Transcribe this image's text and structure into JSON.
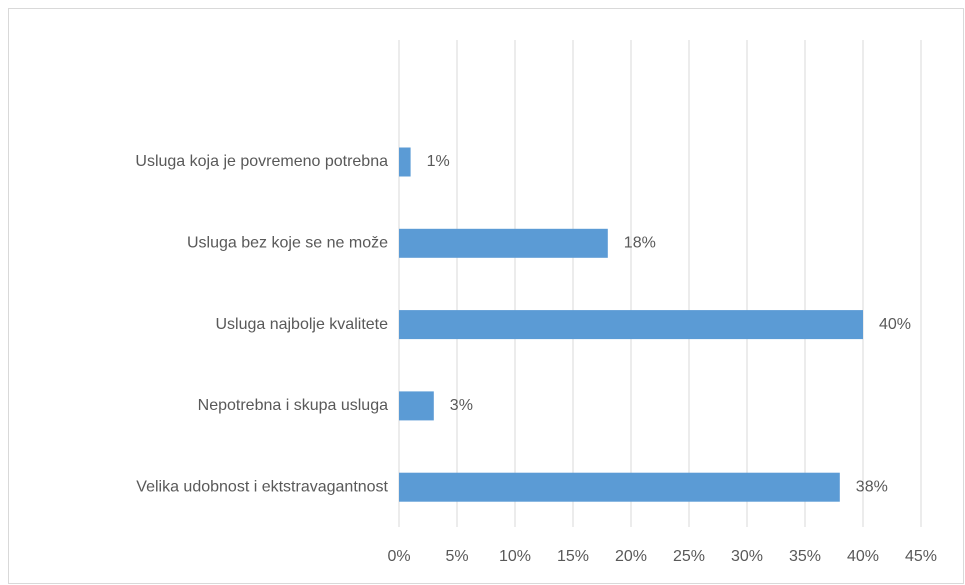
{
  "chart_data": {
    "type": "hbar",
    "categories": [
      "Usluga koja je povremeno potrebna",
      "Usluga bez koje se ne može",
      "Usluga najbolje kvalitete",
      "Nepotrebna i skupa usluga",
      "Velika udobnost i ektstravagantnost"
    ],
    "values": [
      1,
      18,
      40,
      3,
      38
    ],
    "value_labels": [
      "1%",
      "18%",
      "40%",
      "3%",
      "38%"
    ],
    "color": "#5b9bd5",
    "xlim": [
      0,
      45
    ],
    "xticks": [
      {
        "value": 0,
        "label": "0%"
      },
      {
        "value": 5,
        "label": "5%"
      },
      {
        "value": 10,
        "label": "10%"
      },
      {
        "value": 15,
        "label": "15%"
      },
      {
        "value": 20,
        "label": "20%"
      },
      {
        "value": 25,
        "label": "25%"
      },
      {
        "value": 30,
        "label": "30%"
      },
      {
        "value": 35,
        "label": "35%"
      },
      {
        "value": 40,
        "label": "40%"
      },
      {
        "value": 45,
        "label": "45%"
      }
    ],
    "grid": true
  }
}
